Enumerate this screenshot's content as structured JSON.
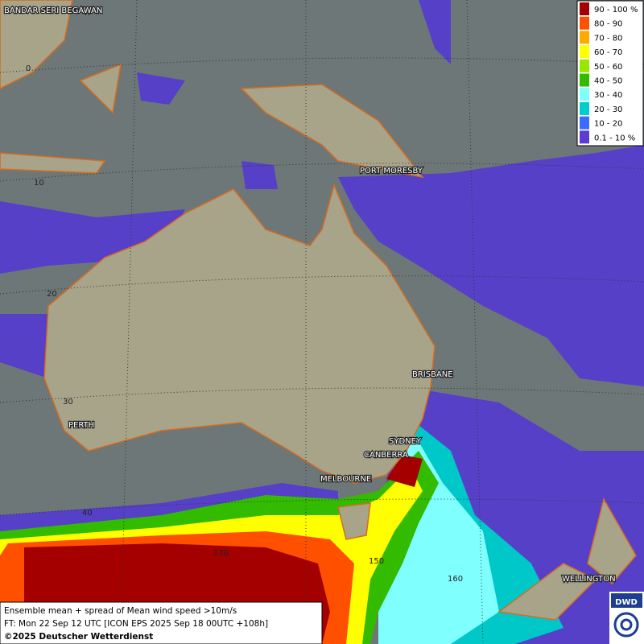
{
  "map": {
    "cities": [
      "BANDAR SERI BEGAWAN",
      "PORT MORESBY",
      "BRISBANE",
      "PERTH",
      "SYDNEY",
      "CANBERRA",
      "MELBOURNE",
      "WELLINGTON"
    ],
    "latitude_labels": [
      "0",
      "10",
      "20",
      "30",
      "40"
    ],
    "longitude_labels": [
      "130",
      "150",
      "160"
    ],
    "legend": [
      {
        "label": "90 - 100 %",
        "color": "#a50000"
      },
      {
        "label": "80 - 90",
        "color": "#ff5000"
      },
      {
        "label": "70 - 80",
        "color": "#ffaa00"
      },
      {
        "label": "60 - 70",
        "color": "#ffff00"
      },
      {
        "label": "50 - 60",
        "color": "#99e600"
      },
      {
        "label": "40 - 50",
        "color": "#33bb00"
      },
      {
        "label": "30 - 40",
        "color": "#80ffff"
      },
      {
        "label": "20 - 30",
        "color": "#00cccc"
      },
      {
        "label": "10 - 20",
        "color": "#3c6cff"
      },
      {
        "label": "0.1 - 10 %",
        "color": "#5a3cd2"
      }
    ],
    "footer": [
      "Ensemble mean + spread of Mean wind speed >10m/s",
      "FT: Mon 22 Sep 12 UTC [ICON EPS 2025 Sep 18 00UTC +108h]",
      "©2025 Deutscher Wetterdienst"
    ],
    "logo": "DWD"
  }
}
